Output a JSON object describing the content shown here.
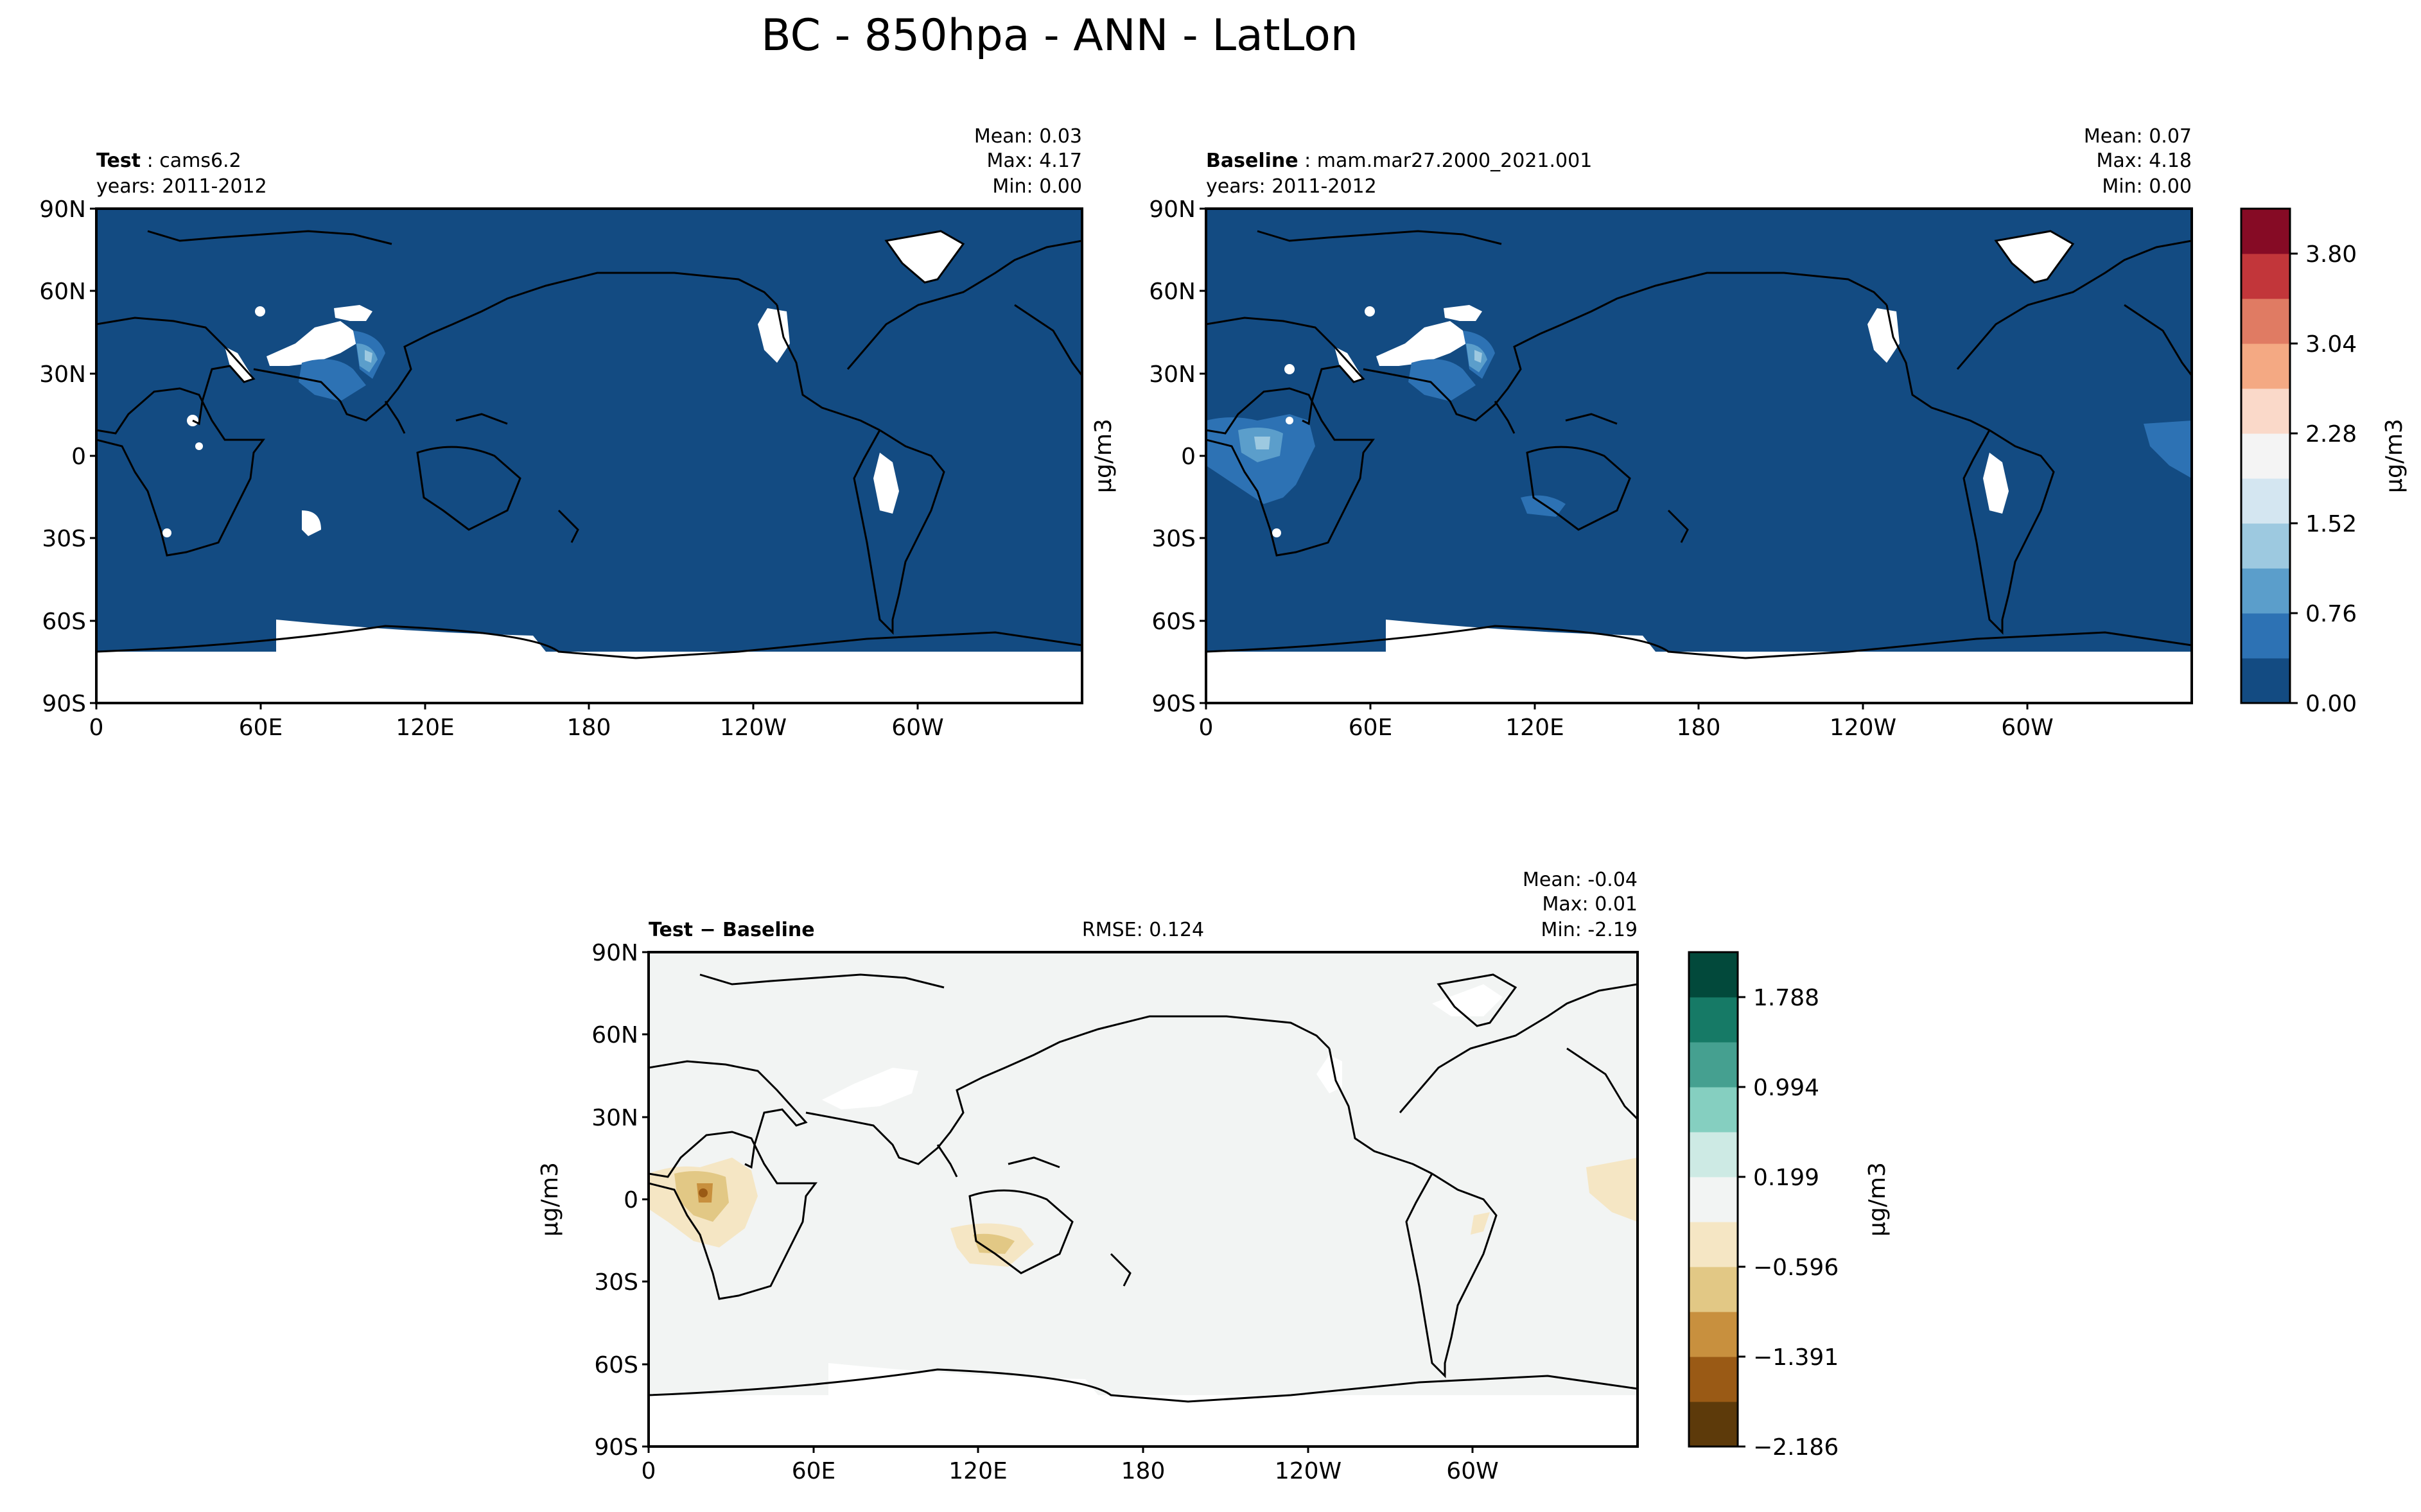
{
  "figure": {
    "title": "BC - 850hpa - ANN - LatLon"
  },
  "colors": {
    "ocean_test": "#134b82",
    "land_white": "#ffffff",
    "diff_background": "#f2f4f3",
    "coast": "#000000",
    "main_scale": [
      "#134b82",
      "#2d72b4",
      "#5b9ecb",
      "#9dc9e0",
      "#d4e6f1",
      "#f4f4f4",
      "#fad9c9",
      "#f4a983",
      "#e07b63",
      "#c2363a",
      "#860b25"
    ],
    "diff_scale": [
      "#5d3a0a",
      "#9a5a15",
      "#c8903e",
      "#e2c885",
      "#f5e6c4",
      "#f2f4f3",
      "#cdeae4",
      "#85cfc0",
      "#45a090",
      "#167a66",
      "#02493b"
    ]
  },
  "chart_data": [
    {
      "type": "heatmap",
      "name": "test",
      "label_bold": "Test",
      "label_rest": "cams6.2",
      "years": "years: 2011-2012",
      "stats": {
        "mean": "Mean:  0.03",
        "max": "Max:  4.17",
        "min": "Min:  0.00"
      },
      "x_ticks": [
        "0",
        "60E",
        "120E",
        "180",
        "120W",
        "60W"
      ],
      "y_ticks": [
        "90N",
        "60N",
        "30N",
        "0",
        "30S",
        "60S",
        "90S"
      ],
      "ylabel": "",
      "max_value": 4.17,
      "mean_value": 0.03
    },
    {
      "type": "heatmap",
      "name": "baseline",
      "label_bold": "Baseline",
      "label_rest": "mam.mar27.2000_2021.001",
      "years": "years: 2011-2012",
      "stats": {
        "mean": "Mean:  0.07",
        "max": "Max:  4.18",
        "min": "Min:  0.00"
      },
      "x_ticks": [
        "0",
        "60E",
        "120E",
        "180",
        "120W",
        "60W"
      ],
      "y_ticks": [
        "90N",
        "60N",
        "30N",
        "0",
        "30S",
        "60S",
        "90S"
      ],
      "ylabel": "µg/m3",
      "max_value": 4.18,
      "mean_value": 0.07
    },
    {
      "type": "heatmap",
      "name": "difference",
      "label_bold": "Test − Baseline",
      "rmse": "RMSE: 0.124",
      "stats": {
        "mean": "Mean: -0.04",
        "max": "Max:  0.01",
        "min": "Min: -2.19"
      },
      "x_ticks": [
        "0",
        "60E",
        "120E",
        "180",
        "120W",
        "60W"
      ],
      "y_ticks": [
        "90N",
        "60N",
        "30N",
        "0",
        "30S",
        "60S",
        "90S"
      ],
      "ylabel": "µg/m3",
      "mean_value": -0.04
    }
  ],
  "colorbars": {
    "main": {
      "ticks": [
        "3.80",
        "3.04",
        "2.28",
        "1.52",
        "0.76",
        "0.00"
      ],
      "label": "µg/m3"
    },
    "diff": {
      "ticks": [
        "1.788",
        "0.994",
        "0.199",
        "−0.596",
        "−1.391",
        "−2.186"
      ],
      "label": "µg/m3"
    }
  }
}
